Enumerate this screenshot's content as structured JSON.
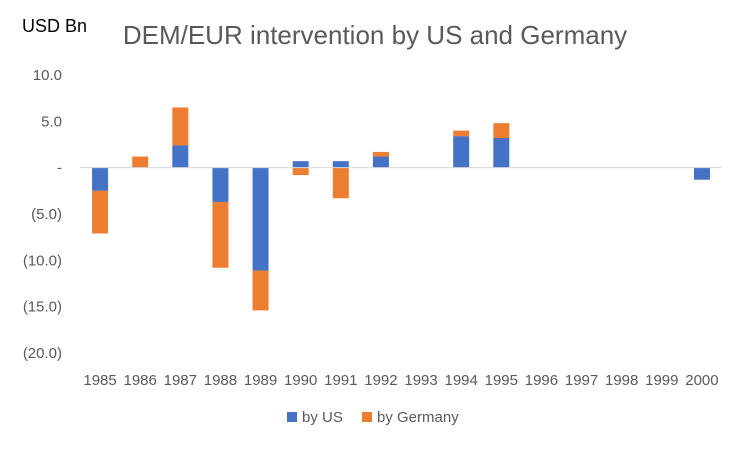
{
  "chart_data": {
    "type": "bar",
    "stacked": true,
    "title": "DEM/EUR intervention by US and Germany",
    "unit_label": "USD Bn",
    "xlabel": "",
    "ylabel": "",
    "ylim": [
      -20,
      10
    ],
    "yticks": [
      10,
      5,
      0,
      -5,
      -10,
      -15,
      -20
    ],
    "ytick_labels": [
      "10.0",
      "5.0",
      "-",
      "(5.0)",
      "(10.0)",
      "(15.0)",
      "(20.0)"
    ],
    "grid": false,
    "legend_position": "bottom",
    "categories": [
      "1985",
      "1986",
      "1987",
      "1988",
      "1989",
      "1990",
      "1991",
      "1992",
      "1993",
      "1994",
      "1995",
      "1996",
      "1997",
      "1998",
      "1999",
      "2000"
    ],
    "series": [
      {
        "name": "by US",
        "color": "#4472C4",
        "values": [
          -2.5,
          0,
          2.4,
          -3.7,
          -11.1,
          0.7,
          0.7,
          1.2,
          0,
          3.4,
          3.2,
          0,
          0,
          0,
          0,
          -1.3
        ]
      },
      {
        "name": "by Germany",
        "color": "#ED7D31",
        "values": [
          -4.6,
          1.2,
          4.1,
          -7.1,
          -4.3,
          -0.8,
          -3.3,
          0.5,
          0,
          0.6,
          1.6,
          0,
          0,
          0,
          0,
          0
        ]
      }
    ]
  }
}
